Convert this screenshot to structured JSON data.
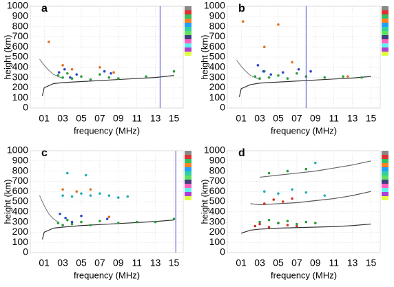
{
  "chart_data": [
    {
      "type": "scatter",
      "panel": "a",
      "xlabel": "frequency (MHz)",
      "ylabel": "height (km)",
      "xlim": [
        -0.5,
        16
      ],
      "ylim": [
        0,
        1000
      ],
      "xticks": [
        {
          "value": 1,
          "label": "01"
        },
        {
          "value": 3,
          "label": "03"
        },
        {
          "value": 5,
          "label": "05"
        },
        {
          "value": 7,
          "label": "07"
        },
        {
          "value": 9,
          "label": "09"
        },
        11,
        13,
        15
      ],
      "yticks": [
        0,
        100,
        200,
        300,
        400,
        500,
        600,
        700,
        800,
        900,
        1000
      ],
      "grid": true,
      "vline": 13.5,
      "vline_color": "#4a4ad0",
      "series": [
        {
          "mode": "line",
          "color": "#333333",
          "x": [
            0.8,
            1,
            2,
            3,
            5,
            7,
            9,
            11,
            13,
            15
          ],
          "y": [
            120,
            200,
            240,
            250,
            260,
            270,
            280,
            290,
            300,
            320
          ]
        },
        {
          "mode": "line",
          "color": "#888888",
          "x": [
            0.5,
            1,
            1.5,
            2,
            3
          ],
          "y": [
            480,
            420,
            370,
            330,
            290
          ]
        },
        {
          "mode": "points",
          "color": "#2a9d3a",
          "x": [
            2.5,
            3,
            3.5,
            4,
            5,
            6,
            7,
            8,
            9,
            12,
            15
          ],
          "y": [
            320,
            300,
            340,
            290,
            310,
            280,
            330,
            300,
            290,
            310,
            360
          ]
        },
        {
          "mode": "points",
          "color": "#3344cc",
          "x": [
            2.6,
            3.2,
            3.8,
            4.5,
            7.5,
            8.2
          ],
          "y": [
            350,
            380,
            300,
            330,
            360,
            340
          ]
        },
        {
          "mode": "points",
          "color": "#e07020",
          "x": [
            1.5,
            3,
            4,
            7,
            8.5
          ],
          "y": [
            650,
            420,
            380,
            400,
            350
          ]
        }
      ]
    },
    {
      "type": "scatter",
      "panel": "b",
      "xlabel": "frequency (MHz)",
      "ylabel": "height (km)",
      "xlim": [
        -0.5,
        16
      ],
      "ylim": [
        0,
        1000
      ],
      "xticks": [
        {
          "value": 1,
          "label": "01"
        },
        {
          "value": 3,
          "label": "03"
        },
        {
          "value": 5,
          "label": "05"
        },
        {
          "value": 7,
          "label": "07"
        },
        {
          "value": 9,
          "label": "09"
        },
        11,
        13,
        15
      ],
      "yticks": [
        0,
        100,
        200,
        300,
        400,
        500,
        600,
        700,
        800,
        900,
        1000
      ],
      "grid": true,
      "vline": 8,
      "vline_color": "#4a4ad0",
      "series": [
        {
          "mode": "line",
          "color": "#333333",
          "x": [
            0.8,
            1,
            2,
            3,
            5,
            7,
            9,
            11,
            13,
            15
          ],
          "y": [
            110,
            190,
            230,
            245,
            255,
            265,
            275,
            285,
            295,
            310
          ]
        },
        {
          "mode": "line",
          "color": "#888888",
          "x": [
            0.5,
            1,
            1.5,
            2,
            3
          ],
          "y": [
            470,
            410,
            360,
            320,
            280
          ]
        },
        {
          "mode": "points",
          "color": "#2a9d3a",
          "x": [
            2.5,
            3,
            3.5,
            4,
            5,
            6,
            7,
            8,
            10,
            12,
            14
          ],
          "y": [
            310,
            290,
            360,
            300,
            320,
            290,
            340,
            310,
            300,
            310,
            300
          ]
        },
        {
          "mode": "points",
          "color": "#3344cc",
          "x": [
            2.8,
            3.4,
            4.2,
            5.5,
            7.2,
            8.5
          ],
          "y": [
            420,
            360,
            330,
            350,
            380,
            360
          ]
        },
        {
          "mode": "points",
          "color": "#e07020",
          "x": [
            1.2,
            3.5,
            5,
            6.5,
            12.5
          ],
          "y": [
            850,
            600,
            820,
            450,
            310
          ]
        }
      ]
    },
    {
      "type": "scatter",
      "panel": "c",
      "xlabel": "frequency (MHz)",
      "ylabel": "height (km)",
      "xlim": [
        -0.5,
        16
      ],
      "ylim": [
        0,
        1000
      ],
      "xticks": [
        {
          "value": 1,
          "label": "01"
        },
        {
          "value": 3,
          "label": "03"
        },
        {
          "value": 5,
          "label": "05"
        },
        {
          "value": 7,
          "label": "07"
        },
        {
          "value": 9,
          "label": "09"
        },
        11,
        13,
        15
      ],
      "yticks": [
        0,
        100,
        200,
        300,
        400,
        500,
        600,
        700,
        800,
        900,
        1000
      ],
      "grid": true,
      "vline": 15.2,
      "vline_color": "#4a4ad0",
      "series": [
        {
          "mode": "line",
          "color": "#333333",
          "x": [
            0.8,
            1,
            2,
            3,
            5,
            7,
            9,
            11,
            13,
            15
          ],
          "y": [
            130,
            200,
            240,
            250,
            265,
            275,
            285,
            295,
            305,
            320
          ]
        },
        {
          "mode": "line",
          "color": "#888888",
          "x": [
            0.5,
            1,
            1.5,
            2,
            2.5
          ],
          "y": [
            560,
            460,
            380,
            330,
            300
          ]
        },
        {
          "mode": "points",
          "color": "#2a9d3a",
          "x": [
            2.5,
            3,
            3.5,
            4,
            5,
            6,
            7,
            9,
            11,
            13,
            15
          ],
          "y": [
            290,
            270,
            320,
            280,
            300,
            270,
            310,
            290,
            300,
            300,
            330
          ]
        },
        {
          "mode": "points",
          "color": "#3344cc",
          "x": [
            2.7,
            3.3,
            4,
            5,
            7.8
          ],
          "y": [
            380,
            340,
            300,
            360,
            330
          ]
        },
        {
          "mode": "points",
          "color": "#20b0b0",
          "x": [
            3,
            4,
            5,
            6,
            7,
            8,
            9,
            10,
            3.5,
            5.5
          ],
          "y": [
            560,
            550,
            580,
            560,
            580,
            560,
            540,
            550,
            780,
            760
          ]
        },
        {
          "mode": "points",
          "color": "#e07020",
          "x": [
            3,
            4.5,
            6,
            8
          ],
          "y": [
            620,
            600,
            620,
            350
          ]
        }
      ]
    },
    {
      "type": "scatter",
      "panel": "d",
      "xlabel": "frequency (MHz)",
      "ylabel": "height (km)",
      "xlim": [
        -0.5,
        16
      ],
      "ylim": [
        0,
        1000
      ],
      "xticks": [
        {
          "value": 1,
          "label": "01"
        },
        {
          "value": 3,
          "label": "03"
        },
        {
          "value": 5,
          "label": "05"
        },
        {
          "value": 7,
          "label": "07"
        },
        {
          "value": 9,
          "label": "09"
        },
        11,
        13,
        15
      ],
      "yticks": [
        0,
        100,
        200,
        300,
        400,
        500,
        600,
        700,
        800,
        900,
        1000
      ],
      "grid": true,
      "series": [
        {
          "mode": "line",
          "color": "#333333",
          "x": [
            1,
            2,
            3,
            5,
            7,
            9,
            11,
            13,
            15
          ],
          "y": [
            190,
            220,
            230,
            240,
            245,
            250,
            255,
            265,
            280
          ]
        },
        {
          "mode": "line",
          "color": "#555555",
          "x": [
            2,
            3,
            5,
            7,
            9,
            11,
            13,
            15
          ],
          "y": [
            480,
            470,
            480,
            490,
            510,
            530,
            560,
            600
          ]
        },
        {
          "mode": "line",
          "color": "#666666",
          "x": [
            3,
            5,
            7,
            9,
            11,
            13,
            15
          ],
          "y": [
            740,
            760,
            780,
            800,
            830,
            860,
            900
          ]
        },
        {
          "mode": "points",
          "color": "#d03020",
          "x": [
            2.5,
            3,
            4,
            5,
            6,
            7,
            3.5,
            4.5,
            5.5,
            6.5
          ],
          "y": [
            260,
            280,
            250,
            290,
            270,
            260,
            480,
            520,
            500,
            530
          ]
        },
        {
          "mode": "points",
          "color": "#2a9d3a",
          "x": [
            3,
            4,
            5,
            6,
            7,
            8,
            9,
            4,
            6,
            8
          ],
          "y": [
            300,
            320,
            290,
            310,
            280,
            300,
            290,
            780,
            800,
            820
          ]
        },
        {
          "mode": "points",
          "color": "#20b0b0",
          "x": [
            3.5,
            5,
            6.5,
            8,
            9,
            10
          ],
          "y": [
            600,
            580,
            620,
            590,
            880,
            560
          ]
        }
      ]
    }
  ]
}
